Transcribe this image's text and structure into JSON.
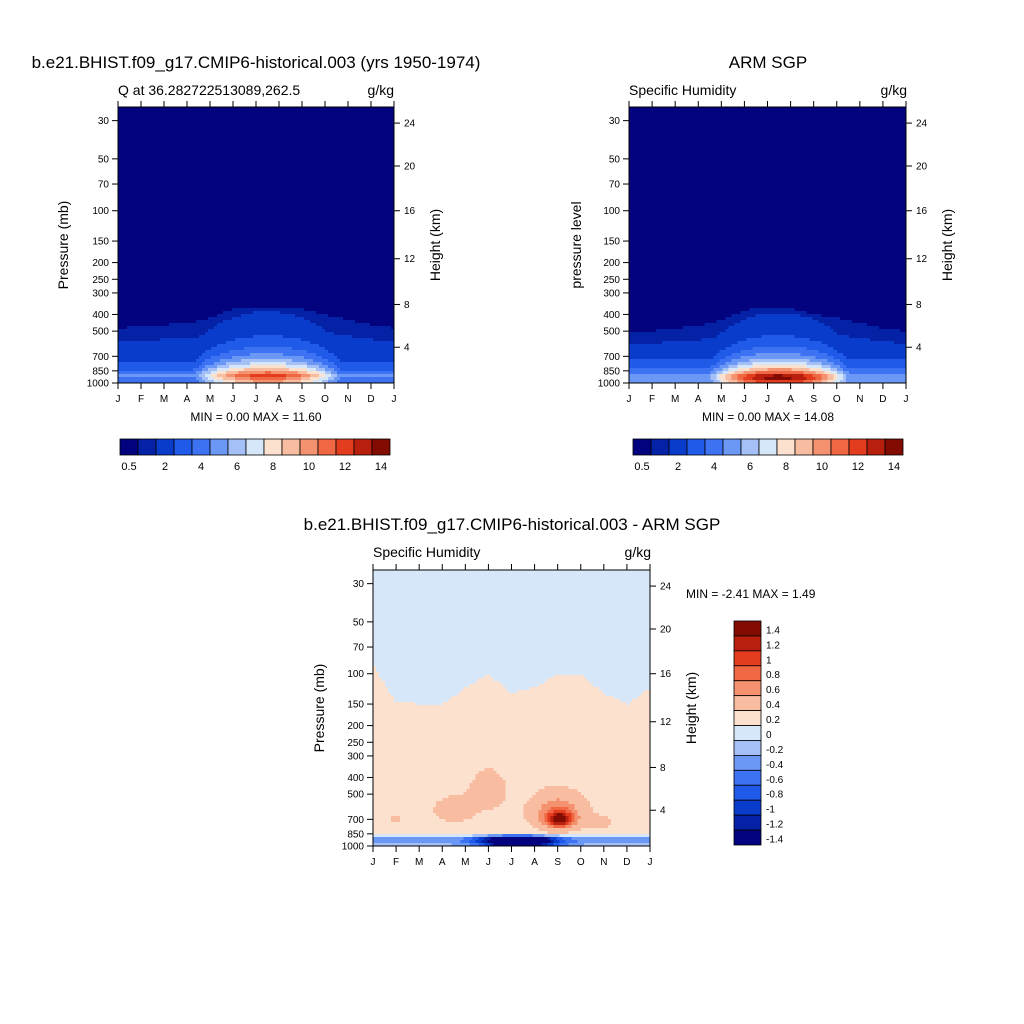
{
  "chart_data": [
    {
      "type": "heatmap",
      "title": "b.e21.BHIST.f09_g17.CMIP6-historical.003 (yrs 1950-1974)",
      "subtitle_left": "Q at 36.282722513089,262.5",
      "subtitle_right": "g/kg",
      "ylabel": "Pressure (mb)",
      "y2label": "Height (km)",
      "stats": "MIN =   0.00 MAX =  11.60",
      "x_ticks": [
        "J",
        "F",
        "M",
        "A",
        "M",
        "J",
        "J",
        "A",
        "S",
        "O",
        "N",
        "D",
        "J"
      ],
      "y_ticks": [
        "30",
        "50",
        "70",
        "100",
        "150",
        "200",
        "250",
        "300",
        "400",
        "500",
        "700",
        "850",
        "1000"
      ],
      "y2_ticks": [
        "24",
        "20",
        "16",
        "12",
        "8",
        "4"
      ],
      "colorbar_labels": [
        "0.5",
        "2",
        "4",
        "6",
        "8",
        "10",
        "12",
        "14"
      ],
      "levels": [
        0.5,
        1,
        2,
        3,
        4,
        5,
        6,
        7,
        8,
        9,
        10,
        11,
        12,
        13,
        14
      ],
      "ylim": [
        1000,
        25
      ],
      "max_value": 11.6,
      "peak_month": 6.5,
      "peak_pressure": 900,
      "month_halfwidth": 3.2,
      "decay_scale": 210,
      "moist_top": [
        480,
        470,
        460,
        450,
        420,
        370,
        360,
        360,
        370,
        400,
        430,
        460,
        480
      ]
    },
    {
      "type": "heatmap",
      "title": "ARM SGP",
      "subtitle_left": "Specific Humidity",
      "subtitle_right": "g/kg",
      "ylabel": "pressure level",
      "y2label": "Height (km)",
      "stats": "MIN =   0.00 MAX =  14.08",
      "x_ticks": [
        "J",
        "F",
        "M",
        "A",
        "M",
        "J",
        "J",
        "A",
        "S",
        "O",
        "N",
        "D",
        "J"
      ],
      "y_ticks": [
        "30",
        "50",
        "70",
        "100",
        "150",
        "200",
        "250",
        "300",
        "400",
        "500",
        "700",
        "850",
        "1000"
      ],
      "y2_ticks": [
        "24",
        "20",
        "16",
        "12",
        "8",
        "4"
      ],
      "colorbar_labels": [
        "0.5",
        "2",
        "4",
        "6",
        "8",
        "10",
        "12",
        "14"
      ],
      "levels": [
        0.5,
        1,
        2,
        3,
        4,
        5,
        6,
        7,
        8,
        9,
        10,
        11,
        12,
        13,
        14
      ],
      "ylim": [
        1000,
        25
      ],
      "max_value": 14.08,
      "peak_month": 6.5,
      "peak_pressure": 920,
      "month_halfwidth": 3.0,
      "decay_scale": 200,
      "moist_top": [
        500,
        500,
        480,
        470,
        430,
        380,
        360,
        370,
        400,
        420,
        450,
        480,
        500
      ]
    },
    {
      "type": "heatmap",
      "title": "b.e21.BHIST.f09_g17.CMIP6-historical.003 - ARM SGP",
      "subtitle_left": "Specific Humidity",
      "subtitle_right": "g/kg",
      "ylabel": "Pressure (mb)",
      "y2label": "Height (km)",
      "stats": "MIN =  -2.41 MAX =   1.49",
      "x_ticks": [
        "J",
        "F",
        "M",
        "A",
        "M",
        "J",
        "J",
        "A",
        "S",
        "O",
        "N",
        "D",
        "J"
      ],
      "y_ticks": [
        "30",
        "50",
        "70",
        "100",
        "150",
        "200",
        "250",
        "300",
        "400",
        "500",
        "700",
        "850",
        "1000"
      ],
      "y2_ticks": [
        "24",
        "20",
        "16",
        "12",
        "8",
        "4"
      ],
      "colorbar_labels": [
        "1.4",
        "1.2",
        "1",
        "0.8",
        "0.6",
        "0.4",
        "0.2",
        "0",
        "-0.2",
        "-0.4",
        "-0.6",
        "-0.8",
        "-1",
        "-1.2",
        "-1.4"
      ],
      "levels": [
        -1.4,
        -1.2,
        -1,
        -0.8,
        -0.6,
        -0.4,
        -0.2,
        0,
        0.2,
        0.4,
        0.6,
        0.8,
        1,
        1.2,
        1.4
      ],
      "ylim": [
        1000,
        25
      ],
      "boundary_pressure": [
        85,
        145,
        150,
        150,
        120,
        100,
        130,
        120,
        100,
        100,
        130,
        150,
        120
      ]
    }
  ],
  "colors": {
    "seq_palette": [
      "#04037f",
      "#0521a5",
      "#0a3ccc",
      "#1f5ae8",
      "#3d72f2",
      "#6b97f5",
      "#a4c0f7",
      "#d6e7f9",
      "#fde1cf",
      "#f8bca0",
      "#f4916e",
      "#ef6743",
      "#e33c1f",
      "#b8200d",
      "#820b02"
    ],
    "div_palette": [
      "#04037f",
      "#0521a5",
      "#0a3ccc",
      "#1f5ae8",
      "#3d72f2",
      "#6b97f5",
      "#a4c0f7",
      "#d6e7f9",
      "#fde1cf",
      "#f8bca0",
      "#f4916e",
      "#ef6743",
      "#e33c1f",
      "#b8200d",
      "#820b02"
    ]
  }
}
